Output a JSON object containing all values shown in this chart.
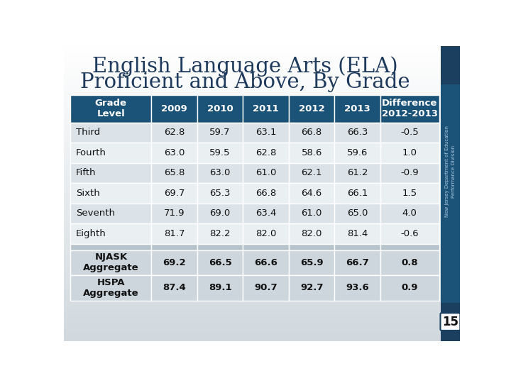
{
  "title_line1": "English Language Arts (ELA)",
  "title_line2": "Proficient and Above, By Grade",
  "header": [
    "Grade\nLevel",
    "2009",
    "2010",
    "2011",
    "2012",
    "2013",
    "Difference\n2012-2013"
  ],
  "rows": [
    [
      "Third",
      "62.8",
      "59.7",
      "63.1",
      "66.8",
      "66.3",
      "-0.5"
    ],
    [
      "Fourth",
      "63.0",
      "59.5",
      "62.8",
      "58.6",
      "59.6",
      "1.0"
    ],
    [
      "Fifth",
      "65.8",
      "63.0",
      "61.0",
      "62.1",
      "61.2",
      "-0.9"
    ],
    [
      "Sixth",
      "69.7",
      "65.3",
      "66.8",
      "64.6",
      "66.1",
      "1.5"
    ],
    [
      "Seventh",
      "71.9",
      "69.0",
      "63.4",
      "61.0",
      "65.0",
      "4.0"
    ],
    [
      "Eighth",
      "81.7",
      "82.2",
      "82.0",
      "82.0",
      "81.4",
      "-0.6"
    ]
  ],
  "aggregate_rows": [
    [
      "NJASK\nAggregate",
      "69.2",
      "66.5",
      "66.6",
      "65.9",
      "66.7",
      "0.8"
    ],
    [
      "HSPA\nAggregate",
      "87.4",
      "89.1",
      "90.7",
      "92.7",
      "93.6",
      "0.9"
    ]
  ],
  "header_bg": "#1b5278",
  "header_text": "#ffffff",
  "row_odd_bg": "#dce3e8",
  "row_even_bg": "#eaeff2",
  "separator_bg": "#b8c4cc",
  "aggregate_bg": "#cdd6dc",
  "title_color": "#1e3a5c",
  "body_text_color": "#111111",
  "side_bar_dark": "#1b3f5e",
  "side_bar_mid": "#1b5278",
  "side_text_color": "#aac8dc",
  "page_number": "15",
  "bg_top": "#ffffff",
  "bg_bottom": "#d8dfe4"
}
